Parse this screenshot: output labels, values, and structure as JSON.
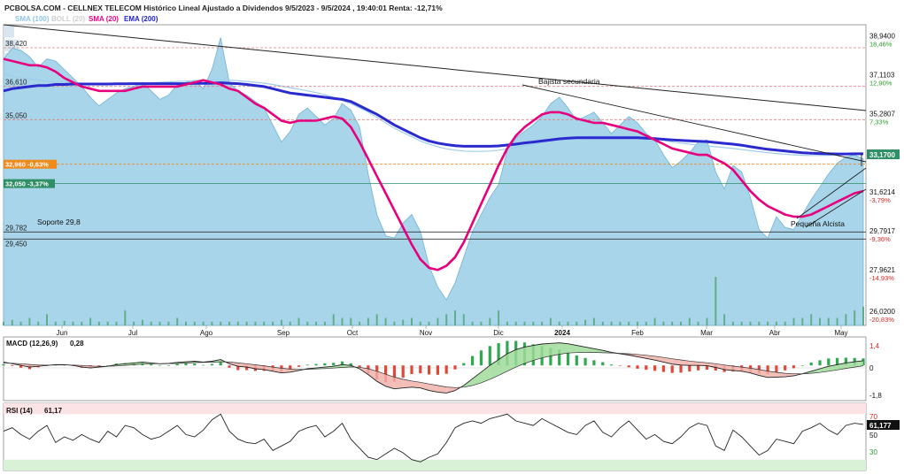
{
  "header": {
    "title": "PCBOLSA.COM - CELLNEX TELECOM Histórico Lineal Ajustado a Dividendos 9/5/2023 - 9/5/2024 , 19:40:01 Renta: -12,71%",
    "legend": [
      {
        "label": "SMA (100)",
        "color": "#8ec4e6"
      },
      {
        "label": "BOLL (20)",
        "color": "#cfcfcf"
      },
      {
        "label": "SMA (20)",
        "color": "#e6007e"
      },
      {
        "label": "EMA (200)",
        "color": "#2222cc"
      }
    ]
  },
  "chart_data": [
    {
      "type": "area",
      "name": "price",
      "ylim": [
        25.4,
        39.5
      ],
      "x_labels": [
        "Jun",
        "Jul",
        "Ago",
        "Sep",
        "Oct",
        "Nov",
        "Dic",
        "2024",
        "Feb",
        "Mar",
        "Abr",
        "May"
      ],
      "right_axis": [
        {
          "value": "38,9400",
          "pct": "18,46%"
        },
        {
          "value": "37,1103",
          "pct": "12,90%"
        },
        {
          "value": "35,2807",
          "pct": "7,33%"
        },
        {
          "value": "33,4510",
          "pct": ""
        },
        {
          "value": "31,6214",
          "pct": "-3,79%"
        },
        {
          "value": "29,7917",
          "pct": "-9,36%"
        },
        {
          "value": "27,9621",
          "pct": "-14,93%"
        },
        {
          "value": "26,0200",
          "pct": "-20,83%"
        }
      ],
      "last_price": "33,1700",
      "levels": [
        {
          "value": 38.42,
          "label": "38,420",
          "color": "#e08080"
        },
        {
          "value": 36.61,
          "label": "36,610",
          "color": "#e08080"
        },
        {
          "value": 35.05,
          "label": "35,050",
          "color": "#e08080"
        },
        {
          "value": 32.96,
          "label": "32,960 -0,63%",
          "color": "#f08a1c"
        },
        {
          "value": 32.05,
          "label": "32,050 -3,37%",
          "color": "#2f8f66"
        },
        {
          "value": 29.782,
          "label": "29,782",
          "color": "#333333"
        },
        {
          "value": 29.45,
          "label": "29,450",
          "color": "#333333"
        }
      ],
      "annotations": {
        "support": "Soporte 29,8",
        "bajista": "Bajista secundaria",
        "alcista": "Pequeña Alcista"
      },
      "price": [
        37.9,
        38.4,
        38.3,
        38.0,
        37.5,
        37.9,
        37.8,
        37.4,
        37.0,
        36.6,
        36.1,
        35.7,
        36.0,
        36.3,
        36.5,
        36.6,
        36.8,
        36.4,
        36.0,
        36.2,
        36.7,
        36.8,
        36.9,
        36.5,
        37.4,
        38.9,
        36.8,
        36.4,
        36.2,
        35.9,
        35.6,
        34.8,
        34.0,
        34.5,
        35.3,
        35.6,
        35.2,
        34.8,
        35.1,
        35.8,
        35.5,
        34.7,
        32.5,
        30.6,
        29.6,
        29.5,
        30.2,
        30.6,
        29.8,
        28.2,
        27.2,
        26.6,
        27.4,
        28.6,
        29.8,
        30.6,
        31.4,
        32.0,
        33.6,
        34.2,
        34.5,
        34.8,
        35.2,
        35.8,
        36.1,
        35.6,
        35.0,
        35.2,
        35.4,
        34.9,
        34.4,
        34.8,
        35.2,
        34.9,
        34.4,
        34.1,
        33.4,
        32.8,
        33.1,
        33.5,
        34.0,
        34.1,
        32.6,
        31.8,
        32.9,
        32.6,
        31.4,
        29.9,
        29.5,
        30.5,
        30.0,
        29.9,
        30.6,
        31.3,
        31.9,
        32.5,
        33.0,
        33.3,
        33.4,
        33.2
      ],
      "sma20": [
        37.9,
        37.8,
        37.7,
        37.6,
        37.6,
        37.5,
        37.3,
        37.0,
        36.8,
        36.6,
        36.5,
        36.4,
        36.4,
        36.4,
        36.4,
        36.5,
        36.6,
        36.6,
        36.6,
        36.6,
        36.6,
        36.7,
        36.8,
        36.9,
        36.8,
        36.7,
        36.5,
        36.4,
        36.1,
        35.8,
        35.6,
        35.3,
        35.0,
        34.9,
        35.0,
        35.0,
        35.0,
        35.1,
        35.2,
        35.1,
        34.7,
        34.0,
        33.2,
        32.4,
        31.6,
        30.8,
        30.0,
        29.2,
        28.5,
        28.1,
        28.0,
        28.2,
        28.6,
        29.3,
        30.2,
        31.1,
        32.0,
        32.9,
        33.7,
        34.3,
        34.7,
        35.0,
        35.3,
        35.4,
        35.4,
        35.3,
        35.1,
        35.0,
        34.9,
        34.9,
        34.8,
        34.7,
        34.6,
        34.5,
        34.3,
        34.1,
        33.9,
        33.7,
        33.6,
        33.5,
        33.4,
        33.4,
        33.2,
        33.0,
        32.7,
        32.2,
        31.7,
        31.3,
        31.0,
        30.8,
        30.6,
        30.5,
        30.5,
        30.6,
        30.8,
        31.0,
        31.2,
        31.4,
        31.6,
        31.7
      ],
      "ema200": [
        36.4,
        36.5,
        36.55,
        36.6,
        36.65,
        36.65,
        36.7,
        36.7,
        36.72,
        36.72,
        36.72,
        36.72,
        36.72,
        36.73,
        36.73,
        36.74,
        36.74,
        36.74,
        36.74,
        36.74,
        36.74,
        36.74,
        36.75,
        36.75,
        36.76,
        36.78,
        36.76,
        36.74,
        36.7,
        36.65,
        36.6,
        36.5,
        36.4,
        36.3,
        36.25,
        36.2,
        36.15,
        36.1,
        36.05,
        36.0,
        35.9,
        35.7,
        35.5,
        35.3,
        35.05,
        34.8,
        34.6,
        34.4,
        34.2,
        34.05,
        33.95,
        33.88,
        33.83,
        33.8,
        33.8,
        33.8,
        33.8,
        33.82,
        33.86,
        33.9,
        33.96,
        34.0,
        34.05,
        34.1,
        34.15,
        34.18,
        34.2,
        34.2,
        34.2,
        34.2,
        34.2,
        34.2,
        34.2,
        34.2,
        34.18,
        34.16,
        34.13,
        34.1,
        34.08,
        34.06,
        34.04,
        34.02,
        33.98,
        33.94,
        33.9,
        33.85,
        33.78,
        33.72,
        33.66,
        33.62,
        33.58,
        33.54,
        33.5,
        33.48,
        33.46,
        33.45,
        33.44,
        33.44,
        33.45,
        33.45
      ],
      "sma100": [
        37.2,
        37.1,
        37.0,
        36.95,
        36.9,
        36.85,
        36.8,
        36.8,
        36.78,
        36.76,
        36.74,
        36.72,
        36.72,
        36.72,
        36.72,
        36.74,
        36.76,
        36.78,
        36.8,
        36.82,
        36.84,
        36.86,
        36.88,
        36.9,
        36.92,
        36.92,
        36.9,
        36.88,
        36.84,
        36.8,
        36.76,
        36.7,
        36.62,
        36.55,
        36.48,
        36.4,
        36.32,
        36.22,
        36.1,
        35.95,
        35.8,
        35.6,
        35.4,
        35.15,
        34.9,
        34.65,
        34.45,
        34.25,
        34.05,
        33.9,
        33.78,
        33.68,
        33.62,
        33.58,
        33.56,
        33.56,
        33.58,
        33.62,
        33.68,
        33.75,
        33.82,
        33.9,
        33.98,
        34.05,
        34.12,
        34.18,
        34.22,
        34.25,
        34.28,
        34.3,
        34.3,
        34.3,
        34.28,
        34.25,
        34.2,
        34.15,
        34.08,
        34.0,
        33.95,
        33.9,
        33.86,
        33.82,
        33.78,
        33.74,
        33.7,
        33.65,
        33.6,
        33.55,
        33.5,
        33.46,
        33.43,
        33.4,
        33.38,
        33.37,
        33.37,
        33.38,
        33.4,
        33.42,
        33.44,
        33.45
      ],
      "volume": [
        1,
        1.5,
        1,
        2,
        1,
        3,
        1,
        1.2,
        1,
        1,
        2,
        1,
        1,
        1,
        4,
        1,
        1.5,
        1,
        1,
        1,
        2,
        1,
        1,
        1,
        1,
        1,
        1,
        1,
        1,
        1,
        1,
        1,
        1.5,
        1,
        2,
        1,
        1,
        1,
        3,
        2,
        2,
        1,
        2,
        3,
        2,
        1,
        1.5,
        2,
        1,
        1,
        2,
        3,
        4,
        3,
        1,
        1,
        2,
        4,
        1,
        1,
        1,
        1,
        1,
        2,
        1,
        1,
        1,
        1.5,
        2,
        1,
        1,
        1,
        1,
        1,
        1,
        2,
        1,
        1,
        1,
        2,
        1,
        2,
        13,
        3,
        1,
        1,
        1,
        1,
        1,
        1,
        1,
        2,
        2,
        3,
        2,
        2,
        2,
        3,
        4,
        5
      ],
      "volume_profile": [
        6,
        8,
        9,
        11,
        12,
        10,
        9,
        8,
        7,
        8,
        10,
        12,
        14,
        12,
        10,
        9,
        8,
        7,
        6,
        5,
        6,
        4
      ]
    },
    {
      "type": "line",
      "name": "MACD (12,26,9)",
      "title": "MACD (12,26,9)",
      "value_label": "0,28",
      "ylim": [
        -2.0,
        1.6
      ],
      "y_ticks": [
        "1,4",
        "0",
        "-1,8"
      ],
      "macd": [
        0.2,
        0.1,
        0.0,
        -0.1,
        -0.05,
        0.0,
        0.05,
        0.05,
        0.0,
        -0.1,
        -0.15,
        -0.1,
        -0.05,
        0.05,
        0.1,
        0.15,
        0.2,
        0.15,
        0.1,
        0.12,
        0.18,
        0.22,
        0.25,
        0.2,
        0.25,
        0.35,
        0.1,
        -0.05,
        -0.1,
        -0.2,
        -0.25,
        -0.35,
        -0.45,
        -0.4,
        -0.3,
        -0.2,
        -0.15,
        -0.1,
        -0.05,
        0.05,
        0.0,
        -0.2,
        -0.55,
        -0.95,
        -1.25,
        -1.4,
        -1.35,
        -1.3,
        -1.35,
        -1.5,
        -1.6,
        -1.65,
        -1.5,
        -1.2,
        -0.8,
        -0.4,
        0.0,
        0.35,
        0.7,
        0.95,
        1.1,
        1.2,
        1.28,
        1.32,
        1.35,
        1.3,
        1.2,
        1.1,
        1.0,
        0.9,
        0.78,
        0.7,
        0.62,
        0.52,
        0.42,
        0.32,
        0.2,
        0.08,
        0.02,
        0.0,
        0.0,
        -0.02,
        -0.12,
        -0.25,
        -0.3,
        -0.35,
        -0.45,
        -0.6,
        -0.72,
        -0.7,
        -0.68,
        -0.62,
        -0.5,
        -0.35,
        -0.2,
        -0.05,
        0.05,
        0.15,
        0.22,
        0.28
      ],
      "signal": [
        0.15,
        0.13,
        0.1,
        0.06,
        0.03,
        0.02,
        0.02,
        0.03,
        0.02,
        0.0,
        -0.03,
        -0.05,
        -0.05,
        -0.03,
        0.0,
        0.04,
        0.08,
        0.1,
        0.1,
        0.11,
        0.12,
        0.14,
        0.17,
        0.18,
        0.19,
        0.22,
        0.2,
        0.15,
        0.1,
        0.04,
        -0.02,
        -0.1,
        -0.17,
        -0.22,
        -0.24,
        -0.23,
        -0.21,
        -0.19,
        -0.16,
        -0.12,
        -0.09,
        -0.11,
        -0.2,
        -0.35,
        -0.53,
        -0.7,
        -0.83,
        -0.93,
        -1.01,
        -1.11,
        -1.2,
        -1.29,
        -1.33,
        -1.3,
        -1.2,
        -1.04,
        -0.83,
        -0.6,
        -0.35,
        -0.1,
        0.12,
        0.3,
        0.45,
        0.57,
        0.67,
        0.74,
        0.77,
        0.78,
        0.78,
        0.76,
        0.74,
        0.72,
        0.7,
        0.66,
        0.61,
        0.55,
        0.48,
        0.4,
        0.33,
        0.26,
        0.21,
        0.16,
        0.1,
        0.03,
        -0.04,
        -0.1,
        -0.17,
        -0.25,
        -0.34,
        -0.41,
        -0.47,
        -0.5,
        -0.5,
        -0.47,
        -0.42,
        -0.35,
        -0.27,
        -0.18,
        -0.1,
        -0.02
      ]
    },
    {
      "type": "line",
      "name": "RSI (14)",
      "title": "RSI (14)",
      "value_label": "61,17",
      "ylim": [
        22,
        78
      ],
      "y_ticks": [
        "70",
        "50",
        "30"
      ],
      "overbought": 70,
      "oversold": 30,
      "last_label": "61,177",
      "rsi": [
        55,
        58,
        52,
        48,
        55,
        60,
        45,
        50,
        47,
        52,
        48,
        45,
        55,
        50,
        60,
        58,
        52,
        48,
        50,
        55,
        60,
        52,
        50,
        56,
        65,
        70,
        55,
        48,
        45,
        44,
        48,
        38,
        42,
        46,
        55,
        58,
        60,
        50,
        55,
        62,
        48,
        40,
        32,
        30,
        35,
        40,
        36,
        30,
        28,
        32,
        35,
        45,
        58,
        62,
        64,
        62,
        66,
        68,
        70,
        64,
        62,
        60,
        66,
        62,
        58,
        54,
        52,
        60,
        64,
        54,
        50,
        58,
        64,
        56,
        48,
        52,
        46,
        44,
        50,
        58,
        62,
        60,
        42,
        38,
        56,
        50,
        42,
        34,
        38,
        48,
        46,
        44,
        55,
        58,
        62,
        56,
        52,
        60,
        62,
        61
      ]
    }
  ]
}
